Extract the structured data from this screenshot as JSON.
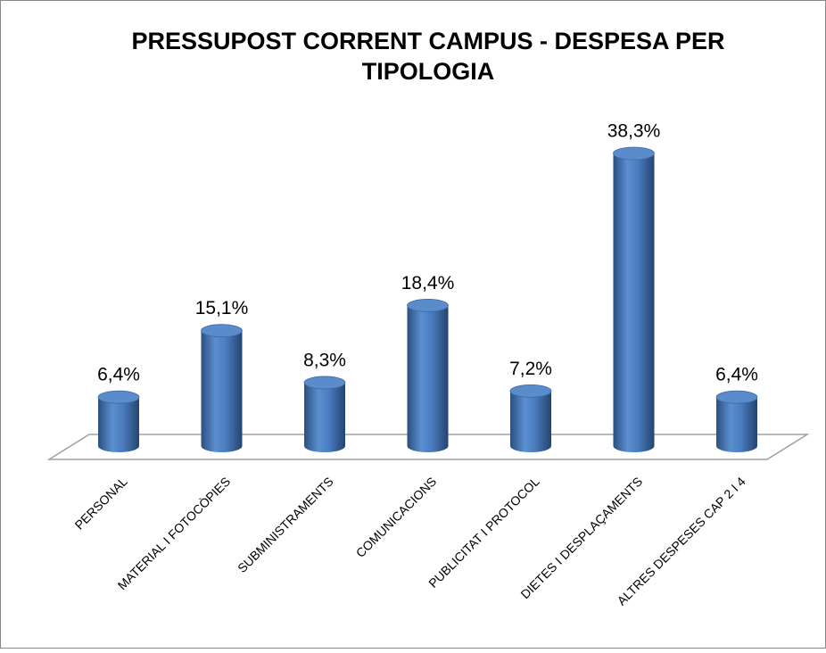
{
  "chart_data": {
    "type": "bar",
    "title": "PRESSUPOST CORRENT CAMPUS - DESPESA PER TIPOLOGIA",
    "categories": [
      "PERSONAL",
      "MATERIAL I FOTOCÒPIES",
      "SUBMINISTRAMENTS",
      "COMUNICACIONS",
      "PUBLICITAT I PROTOCOL",
      "DIETES I DESPLAÇAMENTS",
      "ALTRES DESPESES CAP 2 I 4"
    ],
    "values": [
      6.4,
      15.1,
      8.3,
      18.4,
      7.2,
      38.3,
      6.4
    ],
    "value_labels": [
      "6,4%",
      "15,1%",
      "8,3%",
      "18,4%",
      "7,2%",
      "38,3%",
      "6,4%"
    ],
    "color": "#4f81bd"
  }
}
